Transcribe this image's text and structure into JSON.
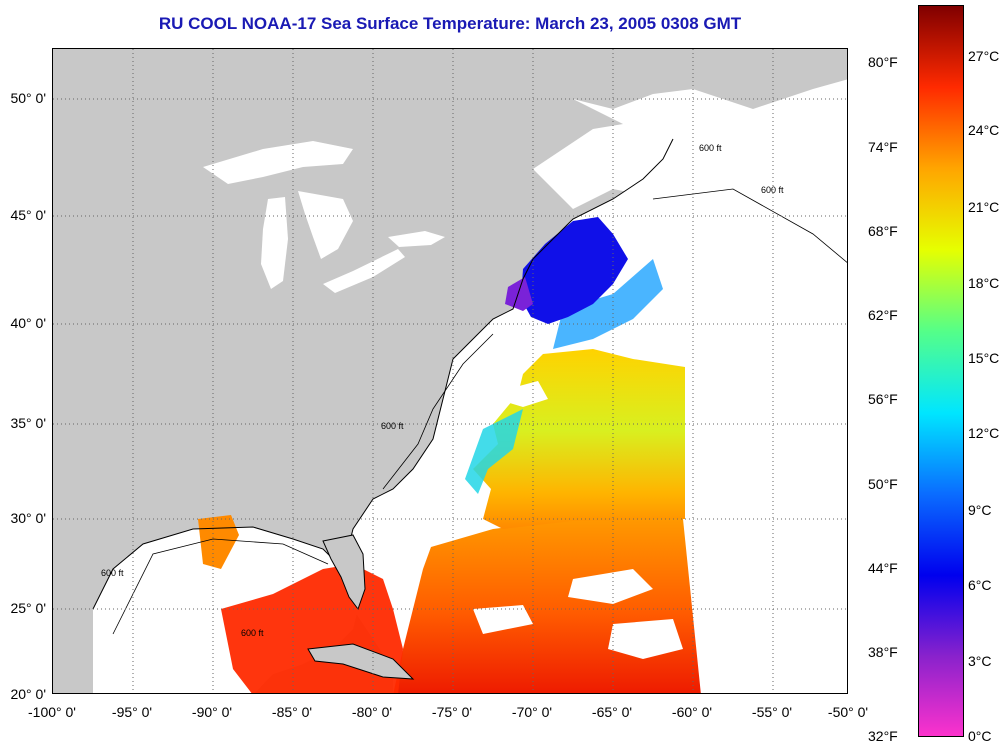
{
  "title": "RU COOL  NOAA-17  Sea Surface Temperature:  March 23, 2005 0308 GMT",
  "map": {
    "lat_labels": [
      "50° 0'",
      "45° 0'",
      "40° 0'",
      "35° 0'",
      "30° 0'",
      "25° 0'",
      "20° 0'"
    ],
    "lon_labels": [
      "-100° 0'",
      "-95° 0'",
      "-90° 0'",
      "-85° 0'",
      "-80° 0'",
      "-75° 0'",
      "-70° 0'",
      "-65° 0'",
      "-60° 0'",
      "-55° 0'",
      "-50° 0'"
    ],
    "isobath_label": "600 ft",
    "colors": {
      "land": "#c8c8c8",
      "water": "#ffffff",
      "grid": "#666666"
    }
  },
  "colorbar": {
    "fahrenheit": [
      "80°F",
      "74°F",
      "68°F",
      "62°F",
      "56°F",
      "50°F",
      "44°F",
      "38°F",
      "32°F"
    ],
    "celsius": [
      "27°C",
      "24°C",
      "21°C",
      "18°C",
      "15°C",
      "12°C",
      "9°C",
      "6°C",
      "3°C",
      "0°C"
    ],
    "stops": [
      "#ff33cc",
      "#8a22cc",
      "#0000ee",
      "#0a6cff",
      "#00e6ff",
      "#55ff88",
      "#e6ff00",
      "#ffa500",
      "#ff2a00",
      "#800000"
    ]
  }
}
